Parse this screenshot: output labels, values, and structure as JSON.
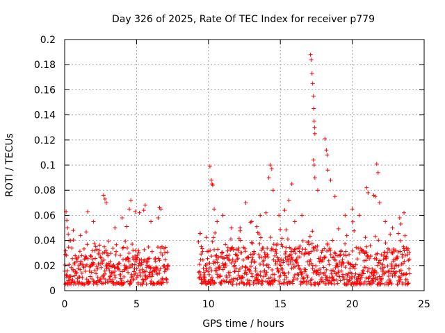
{
  "chart_data": {
    "type": "scatter",
    "title": "Day 326 of 2025, Rate Of TEC Index for receiver p779",
    "xlabel": "GPS time / hours",
    "ylabel": "ROTI / TECUs",
    "xlim": [
      0,
      25
    ],
    "ylim": [
      0,
      0.2
    ],
    "x_ticks": [
      0,
      5,
      10,
      15,
      20,
      25
    ],
    "x_tick_labels": [
      "0",
      "5",
      "10",
      "15",
      "20",
      "25"
    ],
    "y_ticks": [
      0,
      0.02,
      0.04,
      0.06,
      0.08,
      0.1,
      0.12,
      0.14,
      0.16,
      0.18,
      0.2
    ],
    "y_tick_labels": [
      "0",
      "0.02",
      "0.04",
      "0.06",
      "0.08",
      "0.1",
      "0.12",
      "0.14",
      "0.16",
      "0.18",
      "0.2"
    ],
    "grid": true,
    "marker": "+",
    "marker_color": "#ff0000",
    "data_gap_hours": [
      7.2,
      9.3
    ],
    "series": [
      {
        "name": "ROTI",
        "points": [
          [
            0.1,
            0.063
          ],
          [
            0.15,
            0.056
          ],
          [
            0.2,
            0.05
          ],
          [
            0.25,
            0.045
          ],
          [
            0.3,
            0.04
          ],
          [
            0.6,
            0.048
          ],
          [
            1.1,
            0.044
          ],
          [
            1.6,
            0.063
          ],
          [
            2.0,
            0.055
          ],
          [
            2.7,
            0.076
          ],
          [
            2.8,
            0.073
          ],
          [
            2.9,
            0.07
          ],
          [
            3.5,
            0.05
          ],
          [
            4.0,
            0.058
          ],
          [
            4.5,
            0.065
          ],
          [
            4.6,
            0.072
          ],
          [
            4.9,
            0.063
          ],
          [
            5.2,
            0.062
          ],
          [
            5.5,
            0.064
          ],
          [
            5.6,
            0.068
          ],
          [
            6.0,
            0.055
          ],
          [
            6.5,
            0.058
          ],
          [
            6.6,
            0.066
          ],
          [
            6.7,
            0.065
          ],
          [
            9.5,
            0.035
          ],
          [
            10.1,
            0.099
          ],
          [
            10.2,
            0.088
          ],
          [
            10.25,
            0.085
          ],
          [
            10.3,
            0.084
          ],
          [
            10.4,
            0.065
          ],
          [
            10.6,
            0.055
          ],
          [
            11.0,
            0.06
          ],
          [
            11.6,
            0.05
          ],
          [
            12.2,
            0.05
          ],
          [
            12.6,
            0.07
          ],
          [
            13.0,
            0.055
          ],
          [
            13.6,
            0.06
          ],
          [
            14.0,
            0.062
          ],
          [
            14.2,
            0.09
          ],
          [
            14.3,
            0.1
          ],
          [
            14.4,
            0.097
          ],
          [
            14.5,
            0.08
          ],
          [
            14.9,
            0.06
          ],
          [
            15.3,
            0.064
          ],
          [
            15.6,
            0.072
          ],
          [
            15.8,
            0.085
          ],
          [
            16.0,
            0.055
          ],
          [
            16.5,
            0.06
          ],
          [
            17.1,
            0.188
          ],
          [
            17.15,
            0.184
          ],
          [
            17.2,
            0.173
          ],
          [
            17.25,
            0.165
          ],
          [
            17.3,
            0.155
          ],
          [
            17.32,
            0.145
          ],
          [
            17.35,
            0.135
          ],
          [
            17.38,
            0.13
          ],
          [
            17.4,
            0.125
          ],
          [
            17.3,
            0.104
          ],
          [
            17.35,
            0.1
          ],
          [
            17.4,
            0.09
          ],
          [
            17.6,
            0.08
          ],
          [
            18.1,
            0.121
          ],
          [
            18.2,
            0.112
          ],
          [
            18.25,
            0.108
          ],
          [
            18.3,
            0.096
          ],
          [
            18.5,
            0.088
          ],
          [
            18.8,
            0.075
          ],
          [
            19.5,
            0.06
          ],
          [
            20.0,
            0.065
          ],
          [
            20.5,
            0.06
          ],
          [
            21.0,
            0.082
          ],
          [
            21.1,
            0.078
          ],
          [
            21.5,
            0.076
          ],
          [
            21.6,
            0.075
          ],
          [
            21.7,
            0.101
          ],
          [
            21.8,
            0.094
          ],
          [
            21.9,
            0.07
          ],
          [
            22.3,
            0.055
          ],
          [
            22.8,
            0.05
          ],
          [
            23.3,
            0.058
          ],
          [
            23.6,
            0.062
          ]
        ],
        "baseline_note": "dense cluster of points between 0.005 and 0.03 ROTI across 0-7.2 h and 9.3-24 h"
      }
    ]
  }
}
